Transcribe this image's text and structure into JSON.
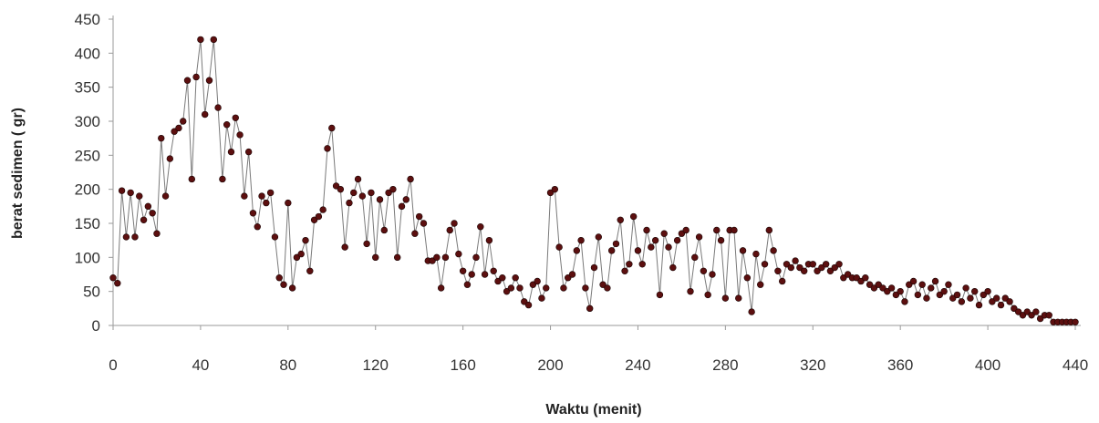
{
  "chart_data": {
    "type": "line",
    "title": "",
    "xlabel": "Waktu (menit)",
    "ylabel": "berat sedimen ( gr)",
    "xlim": [
      0,
      440
    ],
    "ylim": [
      0,
      450
    ],
    "xticks": [
      0,
      40,
      80,
      120,
      160,
      200,
      240,
      280,
      320,
      360,
      400,
      440
    ],
    "yticks": [
      0,
      50,
      100,
      150,
      200,
      250,
      300,
      350,
      400,
      450
    ],
    "grid": false,
    "legend": "none",
    "marker": "circle",
    "colors": {
      "marker": "#5c0f0f",
      "line": "#7a7a7a",
      "axis": "#9a9a9a"
    },
    "series": [
      {
        "x": [
          0,
          2,
          4,
          6,
          8,
          10,
          12,
          14,
          16,
          18,
          20,
          22,
          24,
          26,
          28,
          30,
          32,
          34,
          36,
          38,
          40,
          42,
          44,
          46,
          48,
          50,
          52,
          54,
          56,
          58,
          60,
          62,
          64,
          66,
          68,
          70,
          72,
          74,
          76,
          78,
          80,
          82,
          84,
          86,
          88,
          90,
          92,
          94,
          96,
          98,
          100,
          102,
          104,
          106,
          108,
          110,
          112,
          114,
          116,
          118,
          120,
          122,
          124,
          126,
          128,
          130,
          132,
          134,
          136,
          138,
          140,
          142,
          144,
          146,
          148,
          150,
          152,
          154,
          156,
          158,
          160,
          162,
          164,
          166,
          168,
          170,
          172,
          174,
          176,
          178,
          180,
          182,
          184,
          186,
          188,
          190,
          192,
          194,
          196,
          198,
          200,
          202,
          204,
          206,
          208,
          210,
          212,
          214,
          216,
          218,
          220,
          222,
          224,
          226,
          228,
          230,
          232,
          234,
          236,
          238,
          240,
          242,
          244,
          246,
          248,
          250,
          252,
          254,
          256,
          258,
          260,
          262,
          264,
          266,
          268,
          270,
          272,
          274,
          276,
          278,
          280,
          282,
          284,
          286,
          288,
          290,
          292,
          294,
          296,
          298,
          300,
          302,
          304,
          306,
          308,
          310,
          312,
          314,
          316,
          318,
          320,
          322,
          324,
          326,
          328,
          330,
          332,
          334,
          336,
          338,
          340,
          342,
          344,
          346,
          348,
          350,
          352,
          354,
          356,
          358,
          360,
          362,
          364,
          366,
          368,
          370,
          372,
          374,
          376,
          378,
          380,
          382,
          384,
          386,
          388,
          390,
          392,
          394,
          396,
          398,
          400,
          402,
          404,
          406,
          408,
          410,
          412,
          414,
          416,
          418,
          420,
          422,
          424,
          426,
          428,
          430,
          432,
          434,
          436,
          438,
          440
        ],
        "y": [
          70,
          62,
          198,
          130,
          195,
          130,
          190,
          155,
          175,
          165,
          135,
          275,
          190,
          245,
          285,
          290,
          300,
          360,
          215,
          365,
          420,
          310,
          360,
          420,
          320,
          215,
          295,
          255,
          305,
          280,
          190,
          255,
          165,
          145,
          190,
          180,
          195,
          130,
          70,
          60,
          180,
          55,
          100,
          105,
          125,
          80,
          155,
          160,
          170,
          260,
          290,
          205,
          200,
          115,
          180,
          195,
          215,
          190,
          120,
          195,
          100,
          185,
          140,
          195,
          200,
          100,
          175,
          185,
          215,
          135,
          160,
          150,
          95,
          95,
          100,
          55,
          100,
          140,
          150,
          105,
          80,
          60,
          75,
          100,
          145,
          75,
          125,
          80,
          65,
          70,
          50,
          55,
          70,
          55,
          35,
          30,
          60,
          65,
          40,
          55,
          195,
          200,
          115,
          55,
          70,
          75,
          110,
          125,
          55,
          25,
          85,
          130,
          60,
          55,
          110,
          120,
          155,
          80,
          90,
          160,
          110,
          90,
          140,
          115,
          125,
          45,
          135,
          115,
          85,
          125,
          135,
          140,
          50,
          100,
          130,
          80,
          45,
          75,
          140,
          125,
          40,
          140,
          140,
          40,
          110,
          70,
          20,
          105,
          60,
          90,
          140,
          110,
          80,
          65,
          90,
          85,
          95,
          85,
          80,
          90,
          90,
          80,
          85,
          90,
          80,
          85,
          90,
          70,
          75,
          70,
          70,
          65,
          70,
          60,
          55,
          60,
          55,
          50,
          55,
          45,
          50,
          35,
          60,
          65,
          45,
          60,
          40,
          55,
          65,
          45,
          50,
          60,
          40,
          45,
          35,
          55,
          40,
          50,
          30,
          45,
          50,
          35,
          40,
          30,
          40,
          35,
          25,
          20,
          15,
          20,
          15,
          20,
          10,
          15,
          15,
          5,
          5,
          5,
          5,
          5,
          5
        ]
      }
    ]
  }
}
